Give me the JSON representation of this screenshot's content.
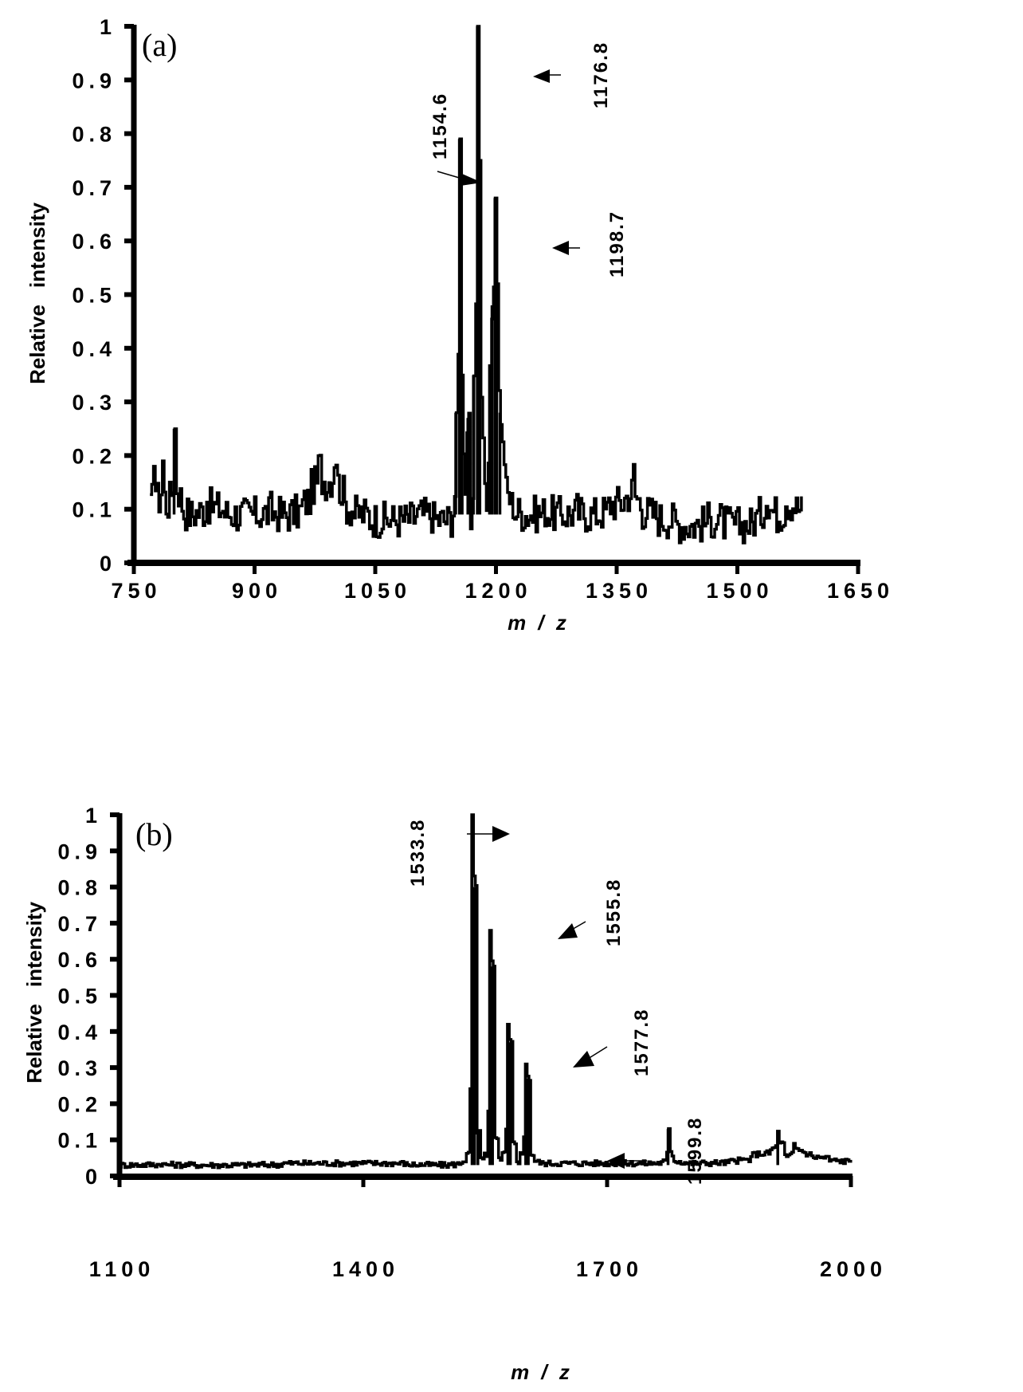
{
  "figure": {
    "panels": [
      {
        "id": "a",
        "label": "(a)",
        "ylabel": "Relative intensity",
        "xlabel": "m / z",
        "yticks": [
          "0",
          "0.1",
          "0.2",
          "0.3",
          "0.4",
          "0.5",
          "0.6",
          "0.7",
          "0.8",
          "0.9",
          "1"
        ],
        "xticks": [
          "750",
          "900",
          "1050",
          "1200",
          "1350",
          "1500",
          "1650"
        ],
        "annotations": [
          "1154.6",
          "1176.8",
          "1198.7"
        ]
      },
      {
        "id": "b",
        "label": "(b)",
        "ylabel": "Relative intensity",
        "xlabel": "m / z",
        "yticks": [
          "0",
          "0.1",
          "0.2",
          "0.3",
          "0.4",
          "0.5",
          "0.6",
          "0.7",
          "0.8",
          "0.9",
          "1"
        ],
        "xticks": [
          "1100",
          "1400",
          "1700",
          "2000"
        ],
        "annotations": [
          "1533.8",
          "1555.8",
          "1577.8",
          "1599.8"
        ]
      }
    ],
    "line_color": "#000000",
    "background": "#ffffff"
  },
  "chart_data": [
    {
      "type": "line",
      "title": "(a)",
      "xlabel": "m/z",
      "ylabel": "Relative intensity",
      "xlim": [
        750,
        1650
      ],
      "ylim": [
        0,
        1
      ],
      "grid": false,
      "legend": null,
      "xticks": [
        750,
        900,
        1050,
        1200,
        1350,
        1500,
        1650
      ],
      "yticks": [
        0,
        0.1,
        0.2,
        0.3,
        0.4,
        0.5,
        0.6,
        0.7,
        0.8,
        0.9,
        1
      ],
      "baseline_range": [
        770,
        1580
      ],
      "baseline_level": 0.09,
      "x": [
        770,
        775,
        780,
        785,
        790,
        795,
        800,
        810,
        820,
        840,
        860,
        880,
        900,
        920,
        940,
        960,
        970,
        980,
        990,
        1000,
        1010,
        1020,
        1040,
        1060,
        1080,
        1100,
        1120,
        1130,
        1140,
        1147,
        1150,
        1154.6,
        1158,
        1162,
        1165,
        1168,
        1172,
        1176.8,
        1180,
        1184,
        1188,
        1192,
        1195,
        1198.7,
        1201,
        1205,
        1210,
        1220,
        1240,
        1260,
        1280,
        1300,
        1320,
        1340,
        1360,
        1370,
        1380,
        1400,
        1420,
        1440,
        1460,
        1480,
        1500,
        1520,
        1535,
        1550,
        1560,
        1570,
        1580
      ],
      "y": [
        0.1,
        0.21,
        0.12,
        0.19,
        0.11,
        0.12,
        0.25,
        0.11,
        0.09,
        0.12,
        0.1,
        0.09,
        0.09,
        0.1,
        0.09,
        0.11,
        0.14,
        0.18,
        0.15,
        0.2,
        0.13,
        0.1,
        0.09,
        0.08,
        0.08,
        0.09,
        0.09,
        0.08,
        0.08,
        0.1,
        0.28,
        0.79,
        0.35,
        0.12,
        0.27,
        0.09,
        0.35,
        1.0,
        0.75,
        0.2,
        0.1,
        0.37,
        0.48,
        0.68,
        0.52,
        0.28,
        0.2,
        0.11,
        0.09,
        0.1,
        0.09,
        0.1,
        0.09,
        0.11,
        0.12,
        0.17,
        0.11,
        0.09,
        0.08,
        0.07,
        0.08,
        0.08,
        0.07,
        0.08,
        0.14,
        0.09,
        0.12,
        0.11,
        0.1
      ],
      "annotations": [
        {
          "text": "1154.6",
          "x": 1154.6,
          "y": 0.79
        },
        {
          "text": "1176.8",
          "x": 1176.8,
          "y": 1.0
        },
        {
          "text": "1198.7",
          "x": 1198.7,
          "y": 0.68
        }
      ]
    },
    {
      "type": "line",
      "title": "(b)",
      "xlabel": "m/z",
      "ylabel": "Relative intensity",
      "xlim": [
        1100,
        2000
      ],
      "ylim": [
        0,
        1
      ],
      "grid": false,
      "legend": null,
      "xticks": [
        1100,
        1400,
        1700,
        2000
      ],
      "yticks": [
        0,
        0.1,
        0.2,
        0.3,
        0.4,
        0.5,
        0.6,
        0.7,
        0.8,
        0.9,
        1
      ],
      "baseline_range": [
        1100,
        2000
      ],
      "baseline_level": 0.03,
      "x": [
        1100,
        1150,
        1200,
        1250,
        1300,
        1350,
        1400,
        1450,
        1500,
        1520,
        1528,
        1533.8,
        1537,
        1541,
        1546,
        1550,
        1555.8,
        1559,
        1563,
        1568,
        1572,
        1577.8,
        1581,
        1585,
        1590,
        1594,
        1599.8,
        1603,
        1607,
        1620,
        1650,
        1700,
        1750,
        1770,
        1775,
        1780,
        1800,
        1850,
        1880,
        1900,
        1910,
        1915,
        1920,
        1930,
        1940,
        1950,
        1970,
        2000
      ],
      "y": [
        0.03,
        0.035,
        0.03,
        0.03,
        0.035,
        0.035,
        0.035,
        0.035,
        0.03,
        0.04,
        0.06,
        1.0,
        0.8,
        0.12,
        0.04,
        0.06,
        0.68,
        0.58,
        0.1,
        0.04,
        0.06,
        0.42,
        0.37,
        0.09,
        0.04,
        0.06,
        0.31,
        0.27,
        0.06,
        0.035,
        0.035,
        0.035,
        0.035,
        0.04,
        0.13,
        0.06,
        0.035,
        0.04,
        0.06,
        0.07,
        0.12,
        0.09,
        0.05,
        0.09,
        0.07,
        0.06,
        0.05,
        0.04
      ],
      "annotations": [
        {
          "text": "1533.8",
          "x": 1533.8,
          "y": 1.0
        },
        {
          "text": "1555.8",
          "x": 1555.8,
          "y": 0.68
        },
        {
          "text": "1577.8",
          "x": 1577.8,
          "y": 0.42
        },
        {
          "text": "1599.8",
          "x": 1599.8,
          "y": 0.31
        }
      ]
    }
  ]
}
